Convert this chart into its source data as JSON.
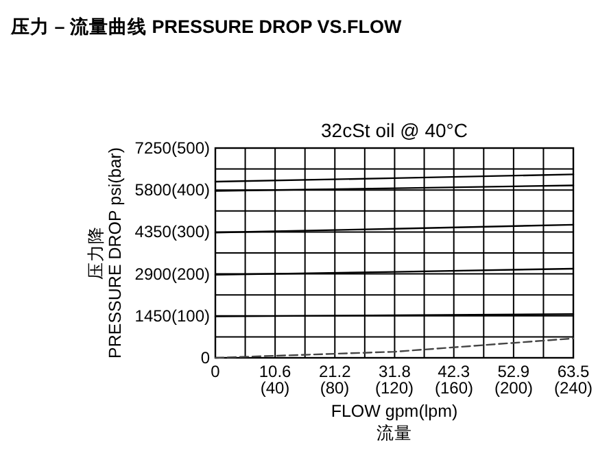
{
  "chart_data": {
    "type": "line",
    "title": "压力 – 流量曲线 PRESSURE DROP VS.FLOW",
    "subtitle": "32cSt  oil @ 40°C",
    "xlabel": "FLOW gpm(lpm)\n流量",
    "ylabel": "压力降\nPRESSURE DROP psi(bar)",
    "xlim": [
      0,
      63.5
    ],
    "ylim": [
      0,
      7250
    ],
    "xticks": [
      0,
      {
        "value": 5.3,
        "label": null
      },
      10.6,
      {
        "value": 15.9,
        "label": null
      },
      21.2,
      {
        "value": 26.5,
        "label": null
      },
      31.8,
      {
        "value": 37.05,
        "label": null
      },
      42.3,
      {
        "value": 47.6,
        "label": null
      },
      52.9,
      {
        "value": 58.2,
        "label": null
      },
      63.5
    ],
    "x2lim": [
      0,
      240
    ],
    "x2ticks": [
      {
        "value": 40,
        "label": "(40)"
      },
      {
        "value": 80,
        "label": "(80)"
      },
      {
        "value": 120,
        "label": "(120)"
      },
      {
        "value": 160,
        "label": "(160)"
      },
      {
        "value": 200,
        "label": "(200)"
      },
      {
        "value": 240,
        "label": "(240)"
      }
    ],
    "yticks": [
      {
        "value": 0,
        "label": null
      },
      {
        "value": 725,
        "label": null
      },
      1450,
      {
        "value": 2175,
        "label": null
      },
      2900,
      {
        "value": 3625,
        "label": null
      },
      4350,
      {
        "value": 5075,
        "label": null
      },
      5800,
      {
        "value": 6525,
        "label": null
      },
      7250
    ],
    "y2lim": [
      0,
      500
    ],
    "y2ticks": [
      0,
      {
        "value": 100,
        "label": "(100)"
      },
      {
        "value": 200,
        "label": "(200)"
      },
      {
        "value": 300,
        "label": "(300)"
      },
      {
        "value": 400,
        "label": "(400)"
      },
      {
        "value": 500,
        "label": "(500)"
      }
    ],
    "grid": true,
    "marker": "none",
    "x": [
      0,
      31.8,
      63.5
    ],
    "series": [
      {
        "color": "#000000",
        "line_style": "solid",
        "values": [
          6090,
          6210,
          6340
        ]
      },
      {
        "color": "#000000",
        "line_style": "solid",
        "values": [
          5770,
          5860,
          5960
        ]
      },
      {
        "color": "#000000",
        "line_style": "solid",
        "values": [
          4330,
          4460,
          4600
        ]
      },
      {
        "color": "#000000",
        "line_style": "solid",
        "values": [
          2870,
          2970,
          3080
        ]
      },
      {
        "color": "#000000",
        "line_style": "solid",
        "values": [
          1430,
          1470,
          1510
        ]
      },
      {
        "color": "#444444",
        "line_style": "dashed",
        "values": [
          0,
          210,
          670
        ]
      }
    ]
  }
}
